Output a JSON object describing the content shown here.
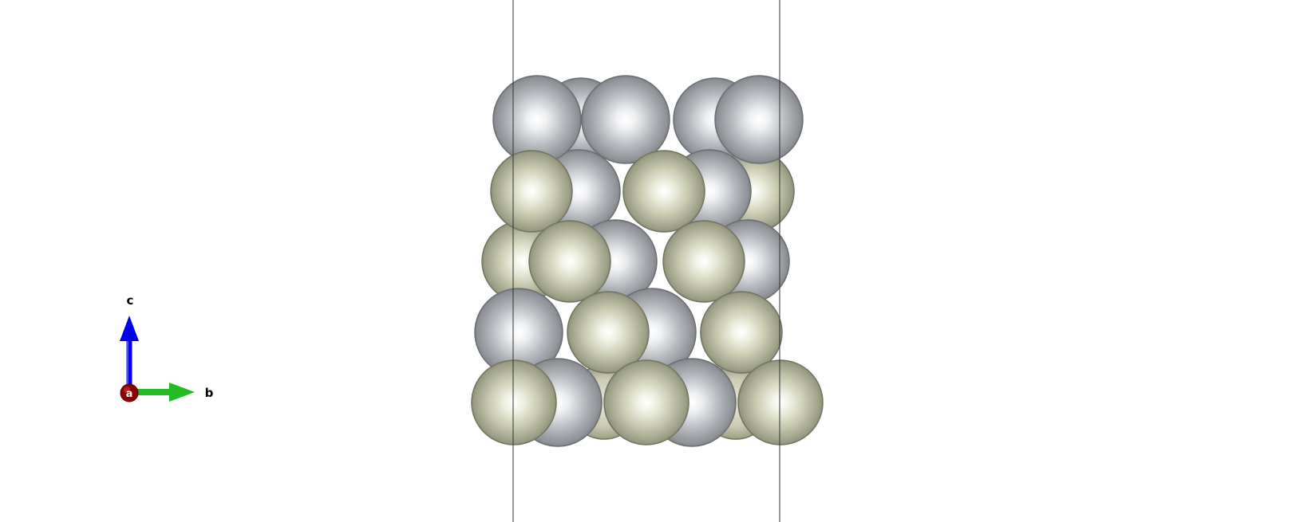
{
  "scene": {
    "colors": {
      "background": "#ffffff",
      "cell_line": "#333333",
      "atom_gray": "#a9adb3",
      "atom_khaki": "#c6c8ad"
    },
    "atoms": [
      {
        "row": 0,
        "species": "gray",
        "depth": "back",
        "count": 2
      },
      {
        "row": 0,
        "species": "gray",
        "depth": "front",
        "count": 3
      },
      {
        "row": 1,
        "species": "khaki",
        "depth": "back",
        "count": 1
      },
      {
        "row": 1,
        "species": "gray",
        "depth": "back",
        "count": 2
      },
      {
        "row": 1,
        "species": "khaki",
        "depth": "front",
        "count": 2
      },
      {
        "row": 2,
        "species": "khaki",
        "depth": "back",
        "count": 1
      },
      {
        "row": 2,
        "species": "gray",
        "depth": "back",
        "count": 2
      },
      {
        "row": 2,
        "species": "khaki",
        "depth": "front",
        "count": 2
      },
      {
        "row": 3,
        "species": "gray",
        "depth": "back",
        "count": 3
      },
      {
        "row": 3,
        "species": "khaki",
        "depth": "front",
        "count": 2
      },
      {
        "row": 4,
        "species": "gray",
        "depth": "back",
        "count": 2
      },
      {
        "row": 4,
        "species": "khaki",
        "depth": "front",
        "count": 3
      }
    ]
  },
  "axes": {
    "origin_label": "a",
    "up_label": "c",
    "right_label": "b",
    "origin_color": "#8b0000",
    "up_color": "#0000ee",
    "right_color": "#22bb22"
  }
}
